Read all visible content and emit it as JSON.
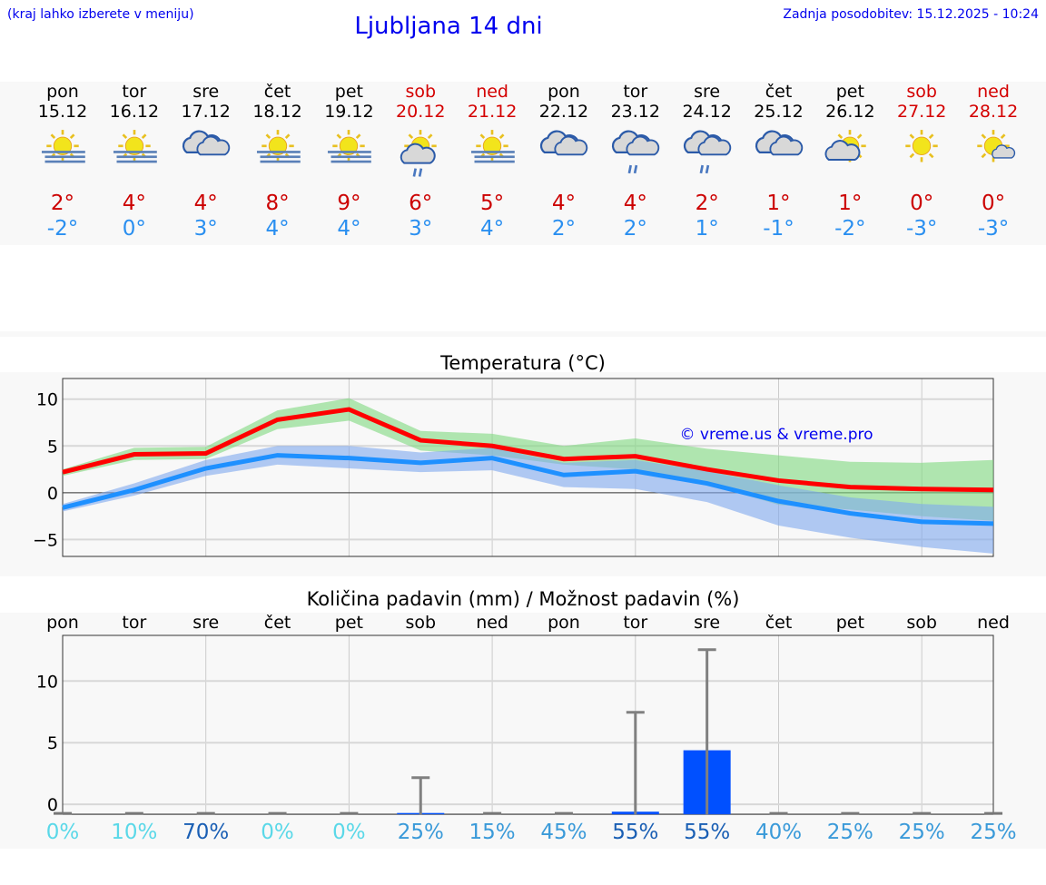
{
  "header": {
    "hint": "(kraj lahko izberete v meniju)",
    "title": "Ljubljana 14 dni",
    "updated": "Zadnja posodobitev: 15.12.2025 - 10:24"
  },
  "days": [
    {
      "name": "pon",
      "date": "15.12",
      "icon": "sun-fog",
      "hi": "2°",
      "lo": "-2°",
      "weekend": false,
      "pct": "0%",
      "pct_color": "#5ad8e8"
    },
    {
      "name": "tor",
      "date": "16.12",
      "icon": "sun-fog",
      "hi": "4°",
      "lo": "0°",
      "weekend": false,
      "pct": "10%",
      "pct_color": "#5ad8e8"
    },
    {
      "name": "sre",
      "date": "17.12",
      "icon": "cloudy",
      "hi": "4°",
      "lo": "3°",
      "weekend": false,
      "pct": "70%",
      "pct_color": "#1a5fb4"
    },
    {
      "name": "čet",
      "date": "18.12",
      "icon": "sun-fog",
      "hi": "8°",
      "lo": "4°",
      "weekend": false,
      "pct": "0%",
      "pct_color": "#5ad8e8"
    },
    {
      "name": "pet",
      "date": "19.12",
      "icon": "sun-fog",
      "hi": "9°",
      "lo": "4°",
      "weekend": false,
      "pct": "0%",
      "pct_color": "#5ad8e8"
    },
    {
      "name": "sob",
      "date": "20.12",
      "icon": "sun-cloud-rain",
      "hi": "6°",
      "lo": "3°",
      "weekend": true,
      "pct": "25%",
      "pct_color": "#3a9ad9"
    },
    {
      "name": "ned",
      "date": "21.12",
      "icon": "sun-fog",
      "hi": "5°",
      "lo": "4°",
      "weekend": true,
      "pct": "15%",
      "pct_color": "#3a9ad9"
    },
    {
      "name": "pon",
      "date": "22.12",
      "icon": "cloudy",
      "hi": "4°",
      "lo": "2°",
      "weekend": false,
      "pct": "45%",
      "pct_color": "#3a9ad9"
    },
    {
      "name": "tor",
      "date": "23.12",
      "icon": "cloudy-rain",
      "hi": "4°",
      "lo": "2°",
      "weekend": false,
      "pct": "55%",
      "pct_color": "#1a5fb4"
    },
    {
      "name": "sre",
      "date": "24.12",
      "icon": "cloudy-rain",
      "hi": "2°",
      "lo": "1°",
      "weekend": false,
      "pct": "55%",
      "pct_color": "#1a5fb4"
    },
    {
      "name": "čet",
      "date": "25.12",
      "icon": "cloudy",
      "hi": "1°",
      "lo": "-1°",
      "weekend": false,
      "pct": "40%",
      "pct_color": "#3a9ad9"
    },
    {
      "name": "pet",
      "date": "26.12",
      "icon": "sun-cloud",
      "hi": "1°",
      "lo": "-2°",
      "weekend": false,
      "pct": "25%",
      "pct_color": "#3a9ad9"
    },
    {
      "name": "sob",
      "date": "27.12",
      "icon": "sun",
      "hi": "0°",
      "lo": "-3°",
      "weekend": true,
      "pct": "25%",
      "pct_color": "#3a9ad9"
    },
    {
      "name": "ned",
      "date": "28.12",
      "icon": "sun-small-cloud",
      "hi": "0°",
      "lo": "-3°",
      "weekend": true,
      "pct": "25%",
      "pct_color": "#3a9ad9"
    }
  ],
  "chart_data": [
    {
      "type": "line",
      "title": "Temperatura (°C)",
      "ylim": [
        -6.8,
        12.2
      ],
      "yticks": [
        -5,
        0,
        5,
        10
      ],
      "grid": true,
      "watermark": "© vreme.us & vreme.pro",
      "series": [
        {
          "values": [
            2.2,
            4.1,
            4.2,
            7.8,
            8.9,
            5.6,
            5.0,
            3.6,
            3.9,
            2.5,
            1.3,
            0.6,
            0.4,
            0.3
          ],
          "band_high": [
            2.5,
            4.8,
            4.9,
            8.8,
            10.1,
            6.6,
            6.3,
            5.0,
            5.8,
            4.7,
            4.0,
            3.3,
            3.2,
            3.5
          ],
          "band_low": [
            1.8,
            3.5,
            3.6,
            6.8,
            7.7,
            4.5,
            4.0,
            3.0,
            2.5,
            1.0,
            -1.3,
            -1.8,
            -2.5,
            -3.0
          ],
          "color": "#ff0000",
          "band_color": "#7fd97f"
        },
        {
          "values": [
            -1.6,
            0.3,
            2.6,
            4.0,
            3.7,
            3.2,
            3.7,
            1.9,
            2.3,
            1.0,
            -0.9,
            -2.2,
            -3.1,
            -3.3
          ],
          "band_high": [
            -1.2,
            1.0,
            3.5,
            5.0,
            5.0,
            4.3,
            4.8,
            3.2,
            3.5,
            2.3,
            0.8,
            -0.5,
            -1.2,
            -1.5
          ],
          "band_low": [
            -2.0,
            -0.3,
            1.8,
            3.0,
            2.6,
            2.2,
            2.4,
            0.6,
            0.4,
            -1.0,
            -3.5,
            -4.8,
            -5.8,
            -6.5
          ],
          "color": "#1e90ff",
          "band_color": "#7fa8ee"
        }
      ]
    },
    {
      "type": "bar",
      "title": "Količina padavin (mm) / Možnost padavin (%)",
      "ylim": [
        -0.8,
        13.7
      ],
      "yticks": [
        0,
        5,
        10
      ],
      "grid": true,
      "categories": [
        "pon",
        "tor",
        "sre",
        "čet",
        "pet",
        "sob",
        "ned",
        "pon",
        "tor",
        "sre",
        "čet",
        "pet",
        "sob",
        "ned"
      ],
      "values": [
        0,
        0,
        0,
        0,
        0,
        0.1,
        0,
        0,
        0.2,
        4.9,
        0,
        0,
        0,
        0
      ],
      "error_high": [
        0,
        0,
        0,
        0,
        0,
        2.8,
        0,
        0,
        7.8,
        12.6,
        0,
        0,
        0,
        0
      ],
      "bar_color": "#0050ff"
    }
  ]
}
